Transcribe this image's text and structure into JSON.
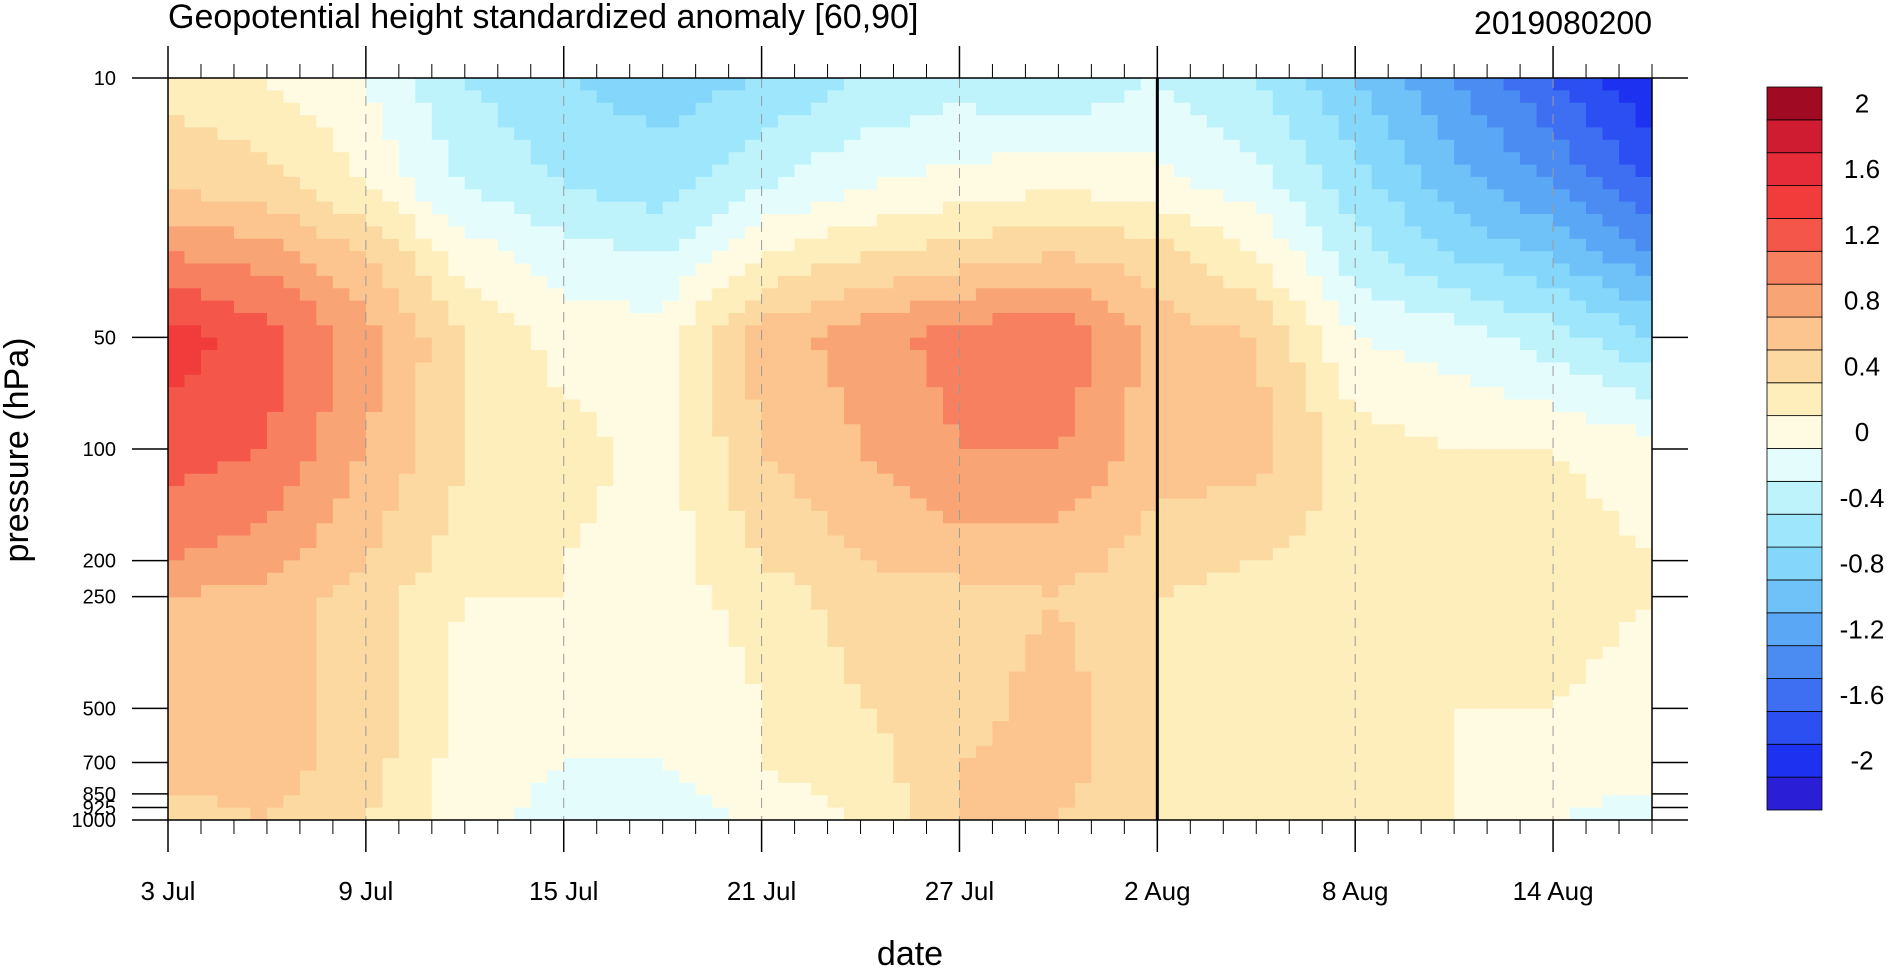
{
  "chart_data": {
    "type": "heatmap",
    "subtype": "filled-contour time-pressure cross section",
    "title": "Geopotential height standardized anomaly [60,90]",
    "init_time_label": "2019080200",
    "xlabel": "date",
    "ylabel": "pressure (hPa)",
    "y_scale": "log",
    "y_inverted": true,
    "ylim": [
      1000,
      10
    ],
    "xlim": [
      "2019-07-03",
      "2019-08-17"
    ],
    "x_tick_labels": [
      "3 Jul",
      "9 Jul",
      "15 Jul",
      "21 Jul",
      "27 Jul",
      "2 Aug",
      "8 Aug",
      "14 Aug"
    ],
    "x_tick_days": [
      0,
      6,
      12,
      18,
      24,
      30,
      36,
      42
    ],
    "y_ticks": [
      10,
      50,
      100,
      200,
      250,
      500,
      700,
      850,
      925,
      1000
    ],
    "y_tick_labels": [
      "10",
      "50",
      "100",
      "200",
      "250",
      "500",
      "700",
      "850",
      "925",
      "1000"
    ],
    "vertical_line_date": "2 Aug",
    "grid": "dashed vertical lines at date ticks",
    "colorbar": {
      "levels": [
        -2.2,
        -2,
        -1.8,
        -1.6,
        -1.4,
        -1.2,
        -1,
        -0.8,
        -0.6,
        -0.4,
        -0.2,
        0,
        0.2,
        0.4,
        0.6,
        0.8,
        1,
        1.2,
        1.4,
        1.6,
        1.8,
        2,
        2.2
      ],
      "colors": [
        "#2a1fd6",
        "#1c32f0",
        "#2c4ff2",
        "#3e6ff2",
        "#4a8cf2",
        "#5aa8f5",
        "#6ec2f8",
        "#84d6fb",
        "#9ee6fc",
        "#bff3fc",
        "#e4fcfc",
        "#fffbe3",
        "#fdeebc",
        "#fcd9a0",
        "#fcc48e",
        "#f9a474",
        "#f78060",
        "#f5564a",
        "#f23c3c",
        "#e62c38",
        "#d01c30",
        "#a00a22"
      ],
      "labels": [
        "-2",
        "-1.6",
        "-1.2",
        "-0.8",
        "-0.4",
        "0",
        "0.4",
        "0.8",
        "1.2",
        "1.6",
        "2"
      ],
      "label_values": [
        -2,
        -1.6,
        -1.2,
        -0.8,
        -0.4,
        0,
        0.4,
        0.8,
        1.2,
        1.6,
        2
      ]
    },
    "days": [
      0,
      3,
      6,
      9,
      12,
      15,
      18,
      21,
      24,
      27,
      30,
      33,
      36,
      39,
      42,
      45
    ],
    "pressure_levels": [
      1000,
      700,
      500,
      250,
      200,
      100,
      50,
      30,
      20,
      10
    ],
    "values": [
      [
        0.5,
        0.6,
        0.4,
        0.1,
        -0.1,
        -0.2,
        0.1,
        0.2,
        0.6,
        0.6,
        0.4,
        0.2,
        0.4,
        0.2,
        0.0,
        -0.1
      ],
      [
        0.7,
        0.7,
        0.5,
        0.1,
        0.0,
        0.0,
        0.2,
        0.3,
        0.6,
        0.7,
        0.4,
        0.2,
        0.3,
        0.2,
        0.1,
        0.1
      ],
      [
        0.7,
        0.7,
        0.5,
        0.1,
        0.1,
        0.0,
        0.2,
        0.4,
        0.5,
        0.7,
        0.4,
        0.3,
        0.3,
        0.2,
        0.2,
        0.1
      ],
      [
        0.8,
        0.7,
        0.5,
        0.2,
        0.2,
        0.1,
        0.3,
        0.5,
        0.5,
        0.6,
        0.4,
        0.3,
        0.3,
        0.2,
        0.3,
        0.2
      ],
      [
        1.0,
        0.9,
        0.6,
        0.3,
        0.2,
        0.1,
        0.4,
        0.6,
        0.7,
        0.7,
        0.5,
        0.4,
        0.3,
        0.3,
        0.3,
        0.2
      ],
      [
        1.3,
        1.2,
        0.8,
        0.4,
        0.3,
        0.1,
        0.6,
        0.8,
        1.0,
        1.0,
        0.7,
        0.7,
        0.3,
        0.2,
        0.2,
        0.1
      ],
      [
        1.5,
        1.3,
        0.9,
        0.4,
        0.1,
        0.1,
        0.7,
        0.9,
        1.1,
        1.2,
        0.7,
        0.6,
        0.0,
        -0.1,
        -0.3,
        -0.6
      ],
      [
        1.0,
        0.9,
        0.6,
        0.1,
        -0.1,
        -0.2,
        0.2,
        0.4,
        0.5,
        0.6,
        0.5,
        0.2,
        -0.3,
        -0.6,
        -0.8,
        -1.2
      ],
      [
        0.6,
        0.5,
        0.2,
        -0.2,
        -0.4,
        -0.5,
        -0.2,
        0.0,
        0.1,
        0.2,
        0.1,
        -0.1,
        -0.5,
        -0.9,
        -1.2,
        -1.6
      ],
      [
        0.3,
        0.2,
        0.0,
        -0.4,
        -0.6,
        -0.7,
        -0.6,
        -0.4,
        -0.3,
        -0.4,
        -0.2,
        -0.4,
        -0.8,
        -1.2,
        -1.6,
        -2.0
      ]
    ]
  }
}
